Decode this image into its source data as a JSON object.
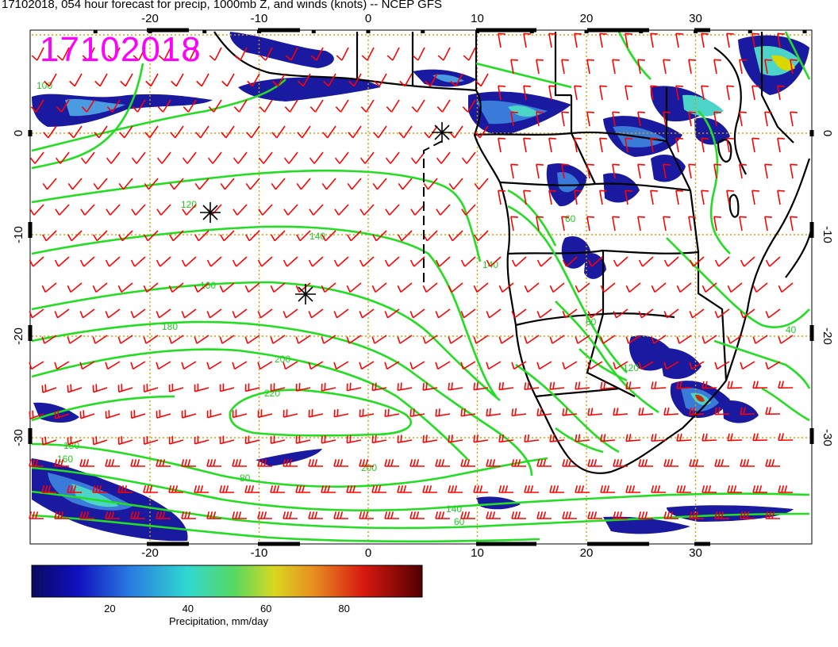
{
  "title": "17102018, 054 hour forecast for precip, 1000mb Z, and winds (knots) -- NCEP GFS",
  "date_stamp": "17102018",
  "lon_ticks": [
    "-20",
    "-10",
    "0",
    "10",
    "20",
    "30"
  ],
  "lat_ticks": [
    "0",
    "-10",
    "-20",
    "-30"
  ],
  "contour_labels": [
    "120",
    "140",
    "160",
    "180",
    "200",
    "220",
    "200",
    "180",
    "160",
    "140",
    "100",
    "80",
    "60",
    "140",
    "120",
    "80",
    "40",
    "60"
  ],
  "colorbar": {
    "ticks": [
      "20",
      "40",
      "60",
      "80"
    ],
    "label": "Precipitation, mm/day",
    "range": [
      0,
      100
    ]
  },
  "colors": {
    "contour": "#22dd22",
    "barb": "#ff0000",
    "grid": "#d4a000",
    "stamp": "#ff00ff",
    "coast": "#000000"
  }
}
